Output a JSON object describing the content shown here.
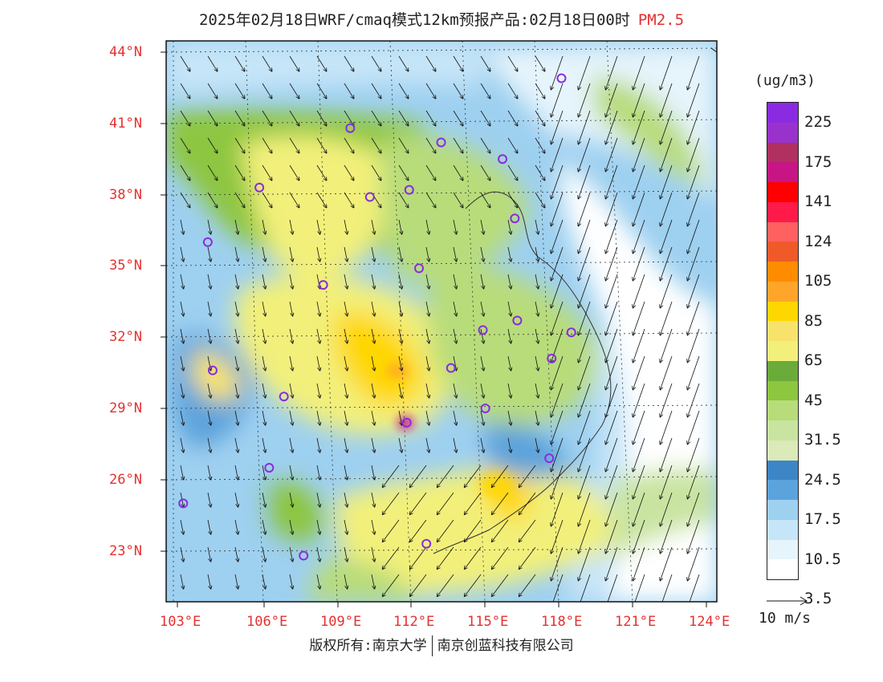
{
  "header": {
    "title": "2025年02月18日WRF/cmaq模式12km预报产品:02月18日00时",
    "pollutant": "PM2.5"
  },
  "legend": {
    "unit": "(ug/m3)",
    "labels": [
      "225",
      "175",
      "141",
      "124",
      "105",
      "85",
      "65",
      "45",
      "31.5",
      "24.5",
      "17.5",
      "10.5",
      "3.5"
    ],
    "colors": [
      "#8a2be2",
      "#9932cc",
      "#b03060",
      "#c71585",
      "#ff0000",
      "#ff1a4a",
      "#ff6060",
      "#f05a28",
      "#ff8c00",
      "#ffa52a",
      "#ffd700",
      "#f7e36b",
      "#f2f07a",
      "#6aab3a",
      "#8dc63f",
      "#b8dc7a",
      "#c9e4a0",
      "#dce9b8",
      "#3d86c6",
      "#5ba3dc",
      "#9ed0f0",
      "#c6e5f8",
      "#e6f4fc",
      "#ffffff"
    ],
    "wind_ref": "10 m/s"
  },
  "axes": {
    "lat": [
      "44°N",
      "41°N",
      "38°N",
      "35°N",
      "32°N",
      "29°N",
      "26°N",
      "23°N"
    ],
    "lon": [
      "103°E",
      "106°E",
      "109°E",
      "112°E",
      "115°E",
      "118°E",
      "121°E",
      "124°E"
    ]
  },
  "footer": {
    "left": "版权所有:南京大学",
    "right": "南京创蓝科技有限公司"
  },
  "map_data": {
    "extent": {
      "lon_min": 103,
      "lon_max": 124,
      "lat_min": 21.3,
      "lat_max": 44.4
    },
    "hotspots": [
      {
        "lon": 112.0,
        "lat": 28.5,
        "level": "high"
      },
      {
        "lon": 111.0,
        "lat": 31.0,
        "level": "moderate"
      },
      {
        "lon": 115.5,
        "lat": 24.5,
        "level": "moderate"
      }
    ],
    "cities": [
      {
        "lon": 118.8,
        "lat": 42.9
      },
      {
        "lon": 110.2,
        "lat": 40.8
      },
      {
        "lon": 113.9,
        "lat": 40.2
      },
      {
        "lon": 116.4,
        "lat": 39.5
      },
      {
        "lon": 106.5,
        "lat": 38.3
      },
      {
        "lon": 111.0,
        "lat": 37.9
      },
      {
        "lon": 112.6,
        "lat": 38.2
      },
      {
        "lon": 116.9,
        "lat": 37.0
      },
      {
        "lon": 104.4,
        "lat": 36.0
      },
      {
        "lon": 113.0,
        "lat": 34.9
      },
      {
        "lon": 109.1,
        "lat": 34.2
      },
      {
        "lon": 117.0,
        "lat": 32.7
      },
      {
        "lon": 115.6,
        "lat": 32.3
      },
      {
        "lon": 119.2,
        "lat": 32.2
      },
      {
        "lon": 118.4,
        "lat": 31.1
      },
      {
        "lon": 104.6,
        "lat": 30.6
      },
      {
        "lon": 114.3,
        "lat": 30.7
      },
      {
        "lon": 107.5,
        "lat": 29.5
      },
      {
        "lon": 115.7,
        "lat": 29.0
      },
      {
        "lon": 112.5,
        "lat": 28.4
      },
      {
        "lon": 106.9,
        "lat": 26.5
      },
      {
        "lon": 118.3,
        "lat": 26.9
      },
      {
        "lon": 103.4,
        "lat": 25.0
      },
      {
        "lon": 113.3,
        "lat": 23.3
      },
      {
        "lon": 108.3,
        "lat": 22.8
      }
    ]
  }
}
